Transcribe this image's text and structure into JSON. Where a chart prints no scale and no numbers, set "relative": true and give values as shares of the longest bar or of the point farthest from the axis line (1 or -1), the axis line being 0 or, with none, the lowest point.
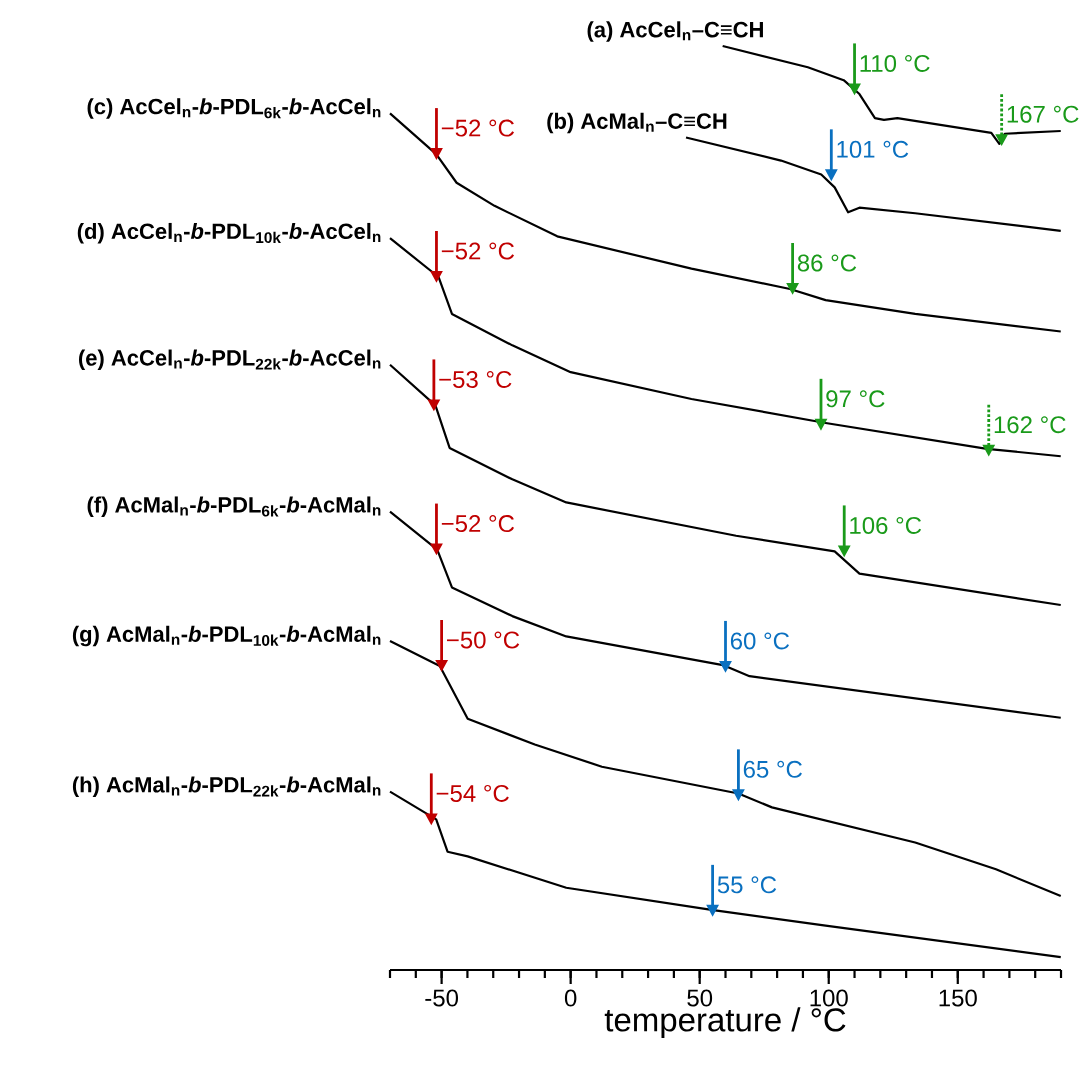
{
  "chart_data": {
    "type": "line",
    "relative": true,
    "xlabel": "temperature / °C",
    "xlim": [
      -70,
      190
    ],
    "xticks": [
      -50,
      0,
      50,
      100,
      150
    ],
    "series": [
      {
        "name": "(a) AcCel$_{n}$–C≡CH",
        "color": "#000000",
        "x": [
          58.9,
          91.9,
          105.8,
          111.9,
          117.9,
          121.4,
          126.6,
          163,
          166.1,
          168.2,
          189.9
        ],
        "values": [
          1.0,
          0.977,
          0.963,
          0.948,
          0.922,
          0.92,
          0.922,
          0.906,
          0.894,
          0.905,
          0.908
        ]
      },
      {
        "name": "(b) AcMal$_{n}$–C≡CH",
        "color": "#000000",
        "x": [
          44.7,
          81.5,
          97.1,
          102.3,
          107.5,
          111.9,
          133.5,
          189.9
        ],
        "values": [
          0.901,
          0.876,
          0.861,
          0.847,
          0.82,
          0.825,
          0.819,
          0.8
        ]
      },
      {
        "name": "(c) AcCel$_{n}$-*b*-PDL$_{6k}$-*b*-AcCel$_{n}$",
        "color": "#000000",
        "x": [
          -70,
          -52.1,
          -44.2,
          -29.5,
          -5.2,
          46.8,
          85,
          98.8,
          133.5,
          189.9
        ],
        "values": [
          0.927,
          0.883,
          0.852,
          0.827,
          0.794,
          0.759,
          0.737,
          0.725,
          0.71,
          0.691
        ]
      },
      {
        "name": "(d) AcCel$_{n}$-*b*-PDL$_{10k}$-*b*-AcCel$_{n}$",
        "color": "#000000",
        "x": [
          -70,
          -51.2,
          -46,
          -22.6,
          0,
          46.8,
          98.8,
          161.3,
          189.9
        ],
        "values": [
          0.792,
          0.75,
          0.71,
          0.676,
          0.647,
          0.618,
          0.592,
          0.564,
          0.556
        ]
      },
      {
        "name": "(e) AcCel$_{n}$-*b*-PDL$_{22k}$-*b*-AcCel$_{n}$",
        "color": "#000000",
        "x": [
          -70,
          -52.4,
          -46.9,
          -22.6,
          -1.7,
          64.1,
          102.3,
          111.9,
          189.9
        ],
        "values": [
          0.655,
          0.611,
          0.565,
          0.531,
          0.506,
          0.47,
          0.453,
          0.429,
          0.395
        ]
      },
      {
        "name": "(f) AcMal$_{n}$-*b*-PDL$_{6k}$-*b*-AcMal$_{n}$",
        "color": "#000000",
        "x": [
          -70,
          -51.7,
          -46,
          -22.6,
          -1.7,
          59,
          69.3,
          189.9
        ],
        "values": [
          0.496,
          0.455,
          0.414,
          0.383,
          0.361,
          0.33,
          0.318,
          0.273
        ]
      },
      {
        "name": "(g) AcMal$_{n}$-*b*-PDL$_{10k}$-*b*-AcMal$_{n}$",
        "color": "#000000",
        "x": [
          -70,
          -50.7,
          -39.9,
          -13.9,
          12.1,
          65,
          78,
          133.5,
          164.8,
          189.9
        ],
        "values": [
          0.356,
          0.329,
          0.272,
          0.244,
          0.22,
          0.191,
          0.176,
          0.138,
          0.109,
          0.08
        ]
      },
      {
        "name": "(h) AcMal$_{n}$-*b*-PDL$_{22k}$-*b*-AcMal$_{n}$",
        "color": "#000000",
        "x": [
          -70,
          -52.1,
          -47.7,
          -39.9,
          -1.7,
          54.6,
          98.8,
          189.9
        ],
        "values": [
          0.193,
          0.163,
          0.128,
          0.123,
          0.089,
          0.065,
          0.048,
          0.014
        ]
      },
      {
        "type": "scatter",
        "color": "#c00000",
        "x": [
          -52,
          -52,
          -53,
          -52,
          -50,
          -54
        ],
        "values": [
          0.883,
          0.75,
          0.611,
          0.455,
          0.329,
          0.163
        ]
      },
      {
        "type": "scatter",
        "color": "#1a9a1a",
        "x": [
          110,
          86,
          97,
          106
        ],
        "values": [
          0.953,
          0.737,
          0.59,
          0.453
        ]
      },
      {
        "type": "scatter",
        "line_style": "dotted",
        "color": "#1a9a1a",
        "x": [
          167,
          162
        ],
        "values": [
          0.898,
          0.562
        ]
      },
      {
        "type": "scatter",
        "color": "#0a70c0",
        "x": [
          101,
          60,
          65,
          55
        ],
        "values": [
          0.86,
          0.328,
          0.189,
          0.064
        ]
      }
    ],
    "annotations": [
      {
        "text": "110 °C",
        "x": 110,
        "y": 0.953
      },
      {
        "text": "167 °C",
        "x": 167,
        "y": 0.898
      },
      {
        "text": "101 °C",
        "x": 101,
        "y": 0.86
      },
      {
        "text": "−52 °C",
        "x": -52,
        "y": 0.883
      },
      {
        "text": "86 °C",
        "x": 86,
        "y": 0.737
      },
      {
        "text": "−52 °C",
        "x": -52,
        "y": 0.75
      },
      {
        "text": "97 °C",
        "x": 97,
        "y": 0.59
      },
      {
        "text": "162 °C",
        "x": 162,
        "y": 0.562
      },
      {
        "text": "−53 °C",
        "x": -53,
        "y": 0.611
      },
      {
        "text": "106 °C",
        "x": 106,
        "y": 0.453
      },
      {
        "text": "−52 °C",
        "x": -52,
        "y": 0.455
      },
      {
        "text": "60 °C",
        "x": 60,
        "y": 0.328
      },
      {
        "text": "−50 °C",
        "x": -50,
        "y": 0.329
      },
      {
        "text": "65 °C",
        "x": 65,
        "y": 0.189
      },
      {
        "text": "−54 °C",
        "x": -54,
        "y": 0.163
      },
      {
        "text": "55 °C",
        "x": 55,
        "y": 0.064
      }
    ]
  }
}
